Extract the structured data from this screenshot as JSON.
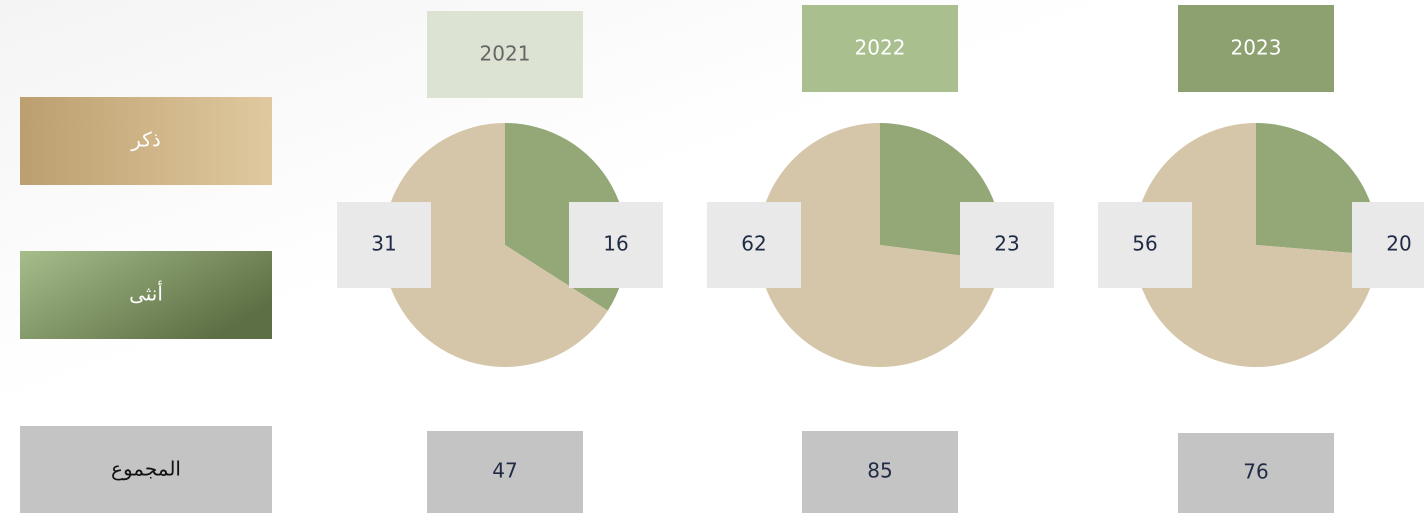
{
  "legend": [
    {
      "label": "ذكر",
      "color": "#d5c5a9"
    },
    {
      "label": "أنثى",
      "color": "#93a777"
    }
  ],
  "total_label": "المجموع",
  "chart_data": [
    {
      "type": "pie",
      "title": "2021",
      "title_color": "#dce3d3",
      "title_text_color": "#666666",
      "values": [
        31,
        16
      ],
      "total": 47
    },
    {
      "type": "pie",
      "title": "2022",
      "title_color": "#a9bf8e",
      "title_text_color": "#ffffff",
      "values": [
        62,
        23
      ],
      "total": 85
    },
    {
      "type": "pie",
      "title": "2023",
      "title_color": "#8da06f",
      "title_text_color": "#ffffff",
      "values": [
        56,
        20
      ],
      "total": 76
    }
  ]
}
